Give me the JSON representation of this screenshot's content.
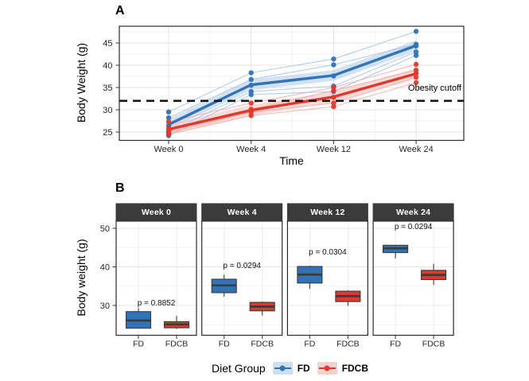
{
  "figure": {
    "panel_a_label": "A",
    "panel_b_label": "B"
  },
  "colors": {
    "fd": "#3273B5",
    "fdcb": "#E0382E",
    "fd_light": "#9FC2E2",
    "fdcb_light": "#F2A8A1",
    "fd_ribbon": "#AECBE8",
    "fdcb_ribbon": "#F5BDB7",
    "strip_bg": "#3B3B3B",
    "strip_text": "#FFFFFF",
    "grid_major": "#E4E4E4",
    "grid_minor": "#F2F2F2",
    "panel_border": "#2B2B2B",
    "cutoff_line": "#151515"
  },
  "chart_data": [
    {
      "type": "line",
      "panel": "A",
      "xlabel": "Time",
      "ylabel": "Body Weight (g)",
      "categories": [
        "Week 0",
        "Week 4",
        "Week 12",
        "Week 24"
      ],
      "yticks": [
        25,
        30,
        35,
        40,
        45
      ],
      "ylim": [
        23.1,
        48.8
      ],
      "grid": true,
      "cutoff": {
        "value": 32,
        "label": "Obesity cutoff"
      },
      "series": [
        {
          "name": "FD",
          "role": "mean",
          "values": [
            26.7,
            35.6,
            37.7,
            44.4
          ]
        },
        {
          "name": "FDCB",
          "role": "mean",
          "values": [
            25.6,
            29.9,
            32.9,
            38.1
          ]
        }
      ],
      "individuals": {
        "FD": [
          [
            29.5,
            38.3,
            41.4,
            47.6
          ],
          [
            28.2,
            36.8,
            40.1,
            44.7
          ],
          [
            26.4,
            35.5,
            37.6,
            44.3
          ],
          [
            25.0,
            34.1,
            35.3,
            43.0
          ],
          [
            24.2,
            33.4,
            34.1,
            42.2
          ]
        ],
        "FDCB": [
          [
            27.3,
            31.5,
            35.0,
            40.2
          ],
          [
            25.8,
            30.1,
            34.3,
            38.9
          ],
          [
            25.3,
            29.7,
            32.8,
            38.2
          ],
          [
            24.9,
            29.5,
            31.5,
            37.3
          ],
          [
            24.5,
            28.7,
            30.7,
            36.1
          ]
        ]
      },
      "ribbon_halfwidth": 1.2
    },
    {
      "type": "box",
      "panel": "B",
      "ylabel": "Body weight (g)",
      "yticks": [
        30,
        40,
        50
      ],
      "ylim": [
        22.2,
        51.9
      ],
      "grid": true,
      "x_categories": [
        "FD",
        "FDCB"
      ],
      "facets": [
        {
          "label": "Week 0",
          "p_label": "p = 0.8852",
          "p_y": 30.3,
          "boxes": [
            {
              "group": "FD",
              "whisker_low": 24.0,
              "q1": 24.1,
              "median": 26.1,
              "q3": 28.4,
              "whisker_high": 29.3
            },
            {
              "group": "FDCB",
              "whisker_low": 23.9,
              "q1": 24.2,
              "median": 25.1,
              "q3": 25.8,
              "whisker_high": 27.3
            }
          ]
        },
        {
          "label": "Week 4",
          "p_label": "p = 0.0294",
          "p_y": 39.9,
          "boxes": [
            {
              "group": "FD",
              "whisker_low": 32.3,
              "q1": 33.3,
              "median": 35.2,
              "q3": 36.8,
              "whisker_high": 38.0
            },
            {
              "group": "FDCB",
              "whisker_low": 27.4,
              "q1": 28.6,
              "median": 29.7,
              "q3": 30.8,
              "whisker_high": 31.0
            }
          ]
        },
        {
          "label": "Week 12",
          "p_label": "p = 0.0304",
          "p_y": 43.4,
          "boxes": [
            {
              "group": "FD",
              "whisker_low": 34.3,
              "q1": 35.8,
              "median": 38.0,
              "q3": 40.1,
              "whisker_high": 40.3
            },
            {
              "group": "FDCB",
              "whisker_low": 29.9,
              "q1": 31.0,
              "median": 32.4,
              "q3": 33.7,
              "whisker_high": 33.9
            }
          ]
        },
        {
          "label": "Week 24",
          "p_label": "p = 0.0294",
          "p_y": 50.0,
          "boxes": [
            {
              "group": "FD",
              "whisker_low": 42.2,
              "q1": 43.7,
              "median": 44.8,
              "q3": 45.6,
              "whisker_high": 45.7
            },
            {
              "group": "FDCB",
              "whisker_low": 35.3,
              "q1": 36.7,
              "median": 37.9,
              "q3": 39.1,
              "whisker_high": 40.8
            }
          ]
        }
      ]
    }
  ],
  "legend": {
    "title": "Diet Group",
    "items": [
      {
        "label": "FD",
        "color": "#3273B5",
        "fill": "#CCE0F1"
      },
      {
        "label": "FDCB",
        "color": "#E0382E",
        "fill": "#F8D0CB"
      }
    ]
  }
}
